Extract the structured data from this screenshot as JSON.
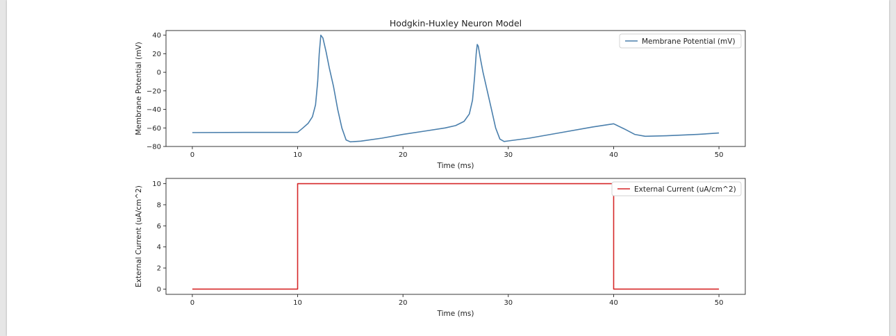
{
  "chart_data": [
    {
      "type": "line",
      "title": "Hodgkin-Huxley Neuron Model",
      "xlabel": "Time (ms)",
      "ylabel": "Membrane Potential (mV)",
      "xlim": [
        -2.5,
        52.5
      ],
      "ylim": [
        -80,
        45
      ],
      "xticks": [
        0,
        10,
        20,
        30,
        40,
        50
      ],
      "yticks": [
        40,
        20,
        0,
        -20,
        -40,
        -60,
        -80
      ],
      "legend_position": "top-right",
      "series": [
        {
          "name": "Membrane Potential (mV)",
          "color": "#4a7fac",
          "x": [
            0,
            5,
            10,
            10.5,
            11,
            11.4,
            11.7,
            11.9,
            12.05,
            12.2,
            12.4,
            12.7,
            13,
            13.4,
            13.8,
            14.2,
            14.6,
            15,
            16,
            18,
            20,
            22,
            24,
            25,
            25.8,
            26.3,
            26.6,
            26.8,
            26.95,
            27.05,
            27.15,
            27.35,
            27.6,
            28,
            28.4,
            28.8,
            29.2,
            29.6,
            30,
            32,
            35,
            38,
            40,
            41,
            42,
            43,
            45,
            48,
            50
          ],
          "y": [
            -65,
            -64.8,
            -64.8,
            -60,
            -55,
            -48,
            -35,
            -10,
            20,
            40,
            37,
            22,
            5,
            -15,
            -40,
            -60,
            -73,
            -75,
            -74.2,
            -71,
            -67,
            -63.5,
            -60,
            -57.5,
            -53,
            -45,
            -30,
            -5,
            20,
            30,
            28,
            15,
            0,
            -20,
            -40,
            -60,
            -72,
            -74.6,
            -74,
            -71,
            -65,
            -59,
            -55.5,
            -61,
            -67,
            -69,
            -68.5,
            -67,
            -65.5
          ]
        }
      ]
    },
    {
      "type": "line",
      "title": "",
      "xlabel": "Time (ms)",
      "ylabel": "External Current (uA/cm^2)",
      "xlim": [
        -2.5,
        52.5
      ],
      "ylim": [
        -0.5,
        10.5
      ],
      "xticks": [
        0,
        10,
        20,
        30,
        40,
        50
      ],
      "yticks": [
        10,
        8,
        6,
        4,
        2,
        0
      ],
      "legend_position": "top-right",
      "series": [
        {
          "name": "External Current (uA/cm^2)",
          "color": "#d62728",
          "x": [
            0,
            10,
            10,
            40,
            40,
            50
          ],
          "y": [
            0,
            0,
            10,
            10,
            0,
            0
          ]
        }
      ]
    }
  ]
}
